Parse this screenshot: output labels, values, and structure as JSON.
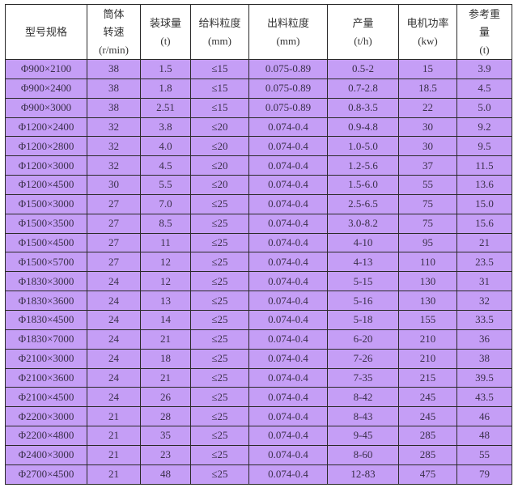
{
  "table": {
    "headers": [
      [
        "型号规格"
      ],
      [
        "筒体",
        "转速",
        "(r/min)"
      ],
      [
        "装球量",
        "(t)"
      ],
      [
        "给料粒度",
        "(mm)"
      ],
      [
        "出料粒度",
        "(mm)"
      ],
      [
        "产量",
        "(t/h)"
      ],
      [
        "电机功率",
        "(kw)"
      ],
      [
        "参考重",
        "量",
        "(t)"
      ]
    ],
    "rows": [
      [
        "Φ900×2100",
        "38",
        "1.5",
        "≤15",
        "0.075-0.89",
        "0.5-2",
        "15",
        "3.9"
      ],
      [
        "Φ900×2400",
        "38",
        "1.8",
        "≤15",
        "0.075-0.89",
        "0.7-2.8",
        "18.5",
        "4.5"
      ],
      [
        "Φ900×3000",
        "38",
        "2.51",
        "≤15",
        "0.075-0.89",
        "0.8-3.5",
        "22",
        "5.0"
      ],
      [
        "Φ1200×2400",
        "32",
        "3.8",
        "≤20",
        "0.074-0.4",
        "0.9-4.8",
        "30",
        "9.2"
      ],
      [
        "Φ1200×2800",
        "32",
        "4.0",
        "≤20",
        "0.074-0.4",
        "1.0-5.0",
        "30",
        "9.5"
      ],
      [
        "Φ1200×3000",
        "32",
        "4.5",
        "≤20",
        "0.074-0.4",
        "1.2-5.6",
        "37",
        "11.5"
      ],
      [
        "Φ1200×4500",
        "30",
        "5.5",
        "≤20",
        "0.074-0.4",
        "1.5-6.0",
        "55",
        "13.6"
      ],
      [
        "Φ1500×3000",
        "27",
        "7.0",
        "≤25",
        "0.074-0.4",
        "2.5-6.5",
        "75",
        "15.0"
      ],
      [
        "Φ1500×3500",
        "27",
        "8.5",
        "≤25",
        "0.074-0.4",
        "3.0-8.2",
        "75",
        "15.6"
      ],
      [
        "Φ1500×4500",
        "27",
        "11",
        "≤25",
        "0.074-0.4",
        "4-10",
        "95",
        "21"
      ],
      [
        "Φ1500×5700",
        "27",
        "12",
        "≤25",
        "0.074-0.4",
        "4-13",
        "110",
        "23.5"
      ],
      [
        "Φ1830×3000",
        "24",
        "12",
        "≤25",
        "0.074-0.4",
        "5-15",
        "130",
        "31"
      ],
      [
        "Φ1830×3600",
        "24",
        "13",
        "≤25",
        "0.074-0.4",
        "5-16",
        "130",
        "32"
      ],
      [
        "Φ1830×4500",
        "24",
        "14",
        "≤25",
        "0.074-0.4",
        "5-18",
        "155",
        "33.5"
      ],
      [
        "Φ1830×7000",
        "24",
        "21",
        "≤25",
        "0.074-0.4",
        "6-20",
        "210",
        "36"
      ],
      [
        "Φ2100×3000",
        "24",
        "18",
        "≤25",
        "0.074-0.4",
        "7-26",
        "210",
        "38"
      ],
      [
        "Φ2100×3600",
        "24",
        "21",
        "≤25",
        "0.074-0.4",
        "7-35",
        "215",
        "39.5"
      ],
      [
        "Φ2100×4500",
        "24",
        "26",
        "≤25",
        "0.074-0.4",
        "8-42",
        "245",
        "43.5"
      ],
      [
        "Φ2200×3000",
        "21",
        "28",
        "≤25",
        "0.074-0.4",
        "8-43",
        "245",
        "46"
      ],
      [
        "Φ2200×4800",
        "21",
        "35",
        "≤25",
        "0.074-0.4",
        "9-45",
        "285",
        "48"
      ],
      [
        "Φ2400×3000",
        "21",
        "23",
        "≤25",
        "0.074-0.4",
        "8-60",
        "285",
        "55"
      ],
      [
        "Φ2700×4500",
        "21",
        "48",
        "≤25",
        "0.074-0.4",
        "12-83",
        "475",
        "79"
      ]
    ],
    "row_color": "#c59ef6",
    "header_color": "#ffffff"
  }
}
